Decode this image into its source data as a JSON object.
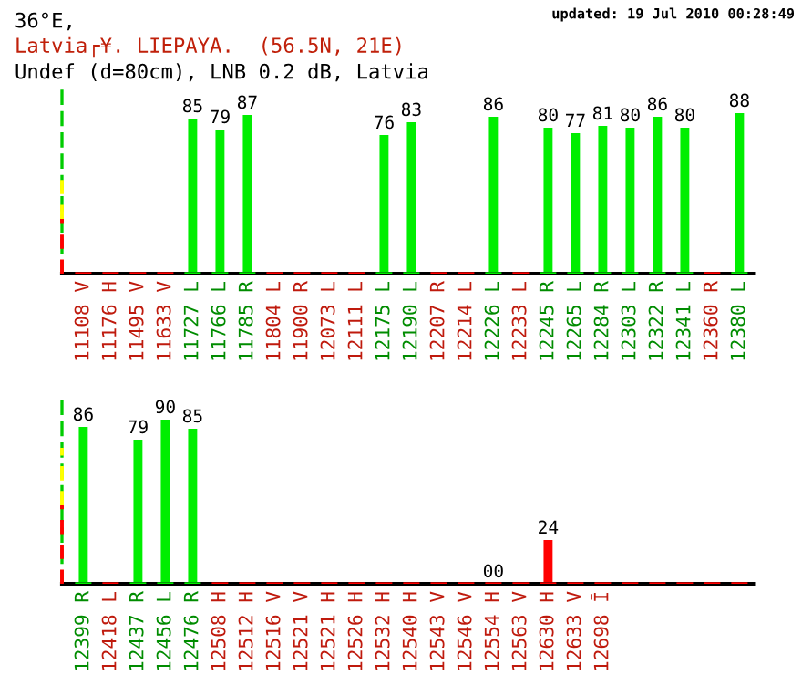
{
  "chart_data": [
    {
      "type": "bar",
      "title": "36°E,",
      "subtitle": "Latvia┌¥. LIEPAYA.  (56.5N, 21E)",
      "annotations": [
        "Undef (d=80cm), LNB 0.2 dB, Latvia",
        "updated: 19 Jul 2010 00:28:49"
      ],
      "categories": [
        "11108 V",
        "11176 H",
        "11495 V",
        "11633 V",
        "11727 L",
        "11766 L",
        "11785 R",
        "11804 L",
        "11900 R",
        "12073 L",
        "12111 L",
        "12175 L",
        "12190 L",
        "12207 R",
        "12214 L",
        "12226 L",
        "12233 L",
        "12245 R",
        "12265 L",
        "12284 R",
        "12303 L",
        "12322 R",
        "12341 L",
        "12360 R",
        "12380 L"
      ],
      "values": [
        0,
        0,
        0,
        0,
        85,
        79,
        87,
        0,
        0,
        0,
        0,
        76,
        83,
        0,
        0,
        86,
        0,
        80,
        77,
        81,
        80,
        86,
        80,
        0,
        88
      ],
      "colors": [
        "#ff0000",
        "#ff0000",
        "#ff0000",
        "#ff0000",
        "#00ee00",
        "#00ee00",
        "#00ee00",
        "#ff0000",
        "#ff0000",
        "#ff0000",
        "#ff0000",
        "#00ee00",
        "#00ee00",
        "#ff0000",
        "#ff0000",
        "#00ee00",
        "#ff0000",
        "#00ee00",
        "#00ee00",
        "#00ee00",
        "#00ee00",
        "#00ee00",
        "#00ee00",
        "#ff0000",
        "#00ee00"
      ],
      "value_labels": [
        null,
        null,
        null,
        null,
        "85",
        "79",
        "87",
        null,
        null,
        null,
        null,
        "76",
        "83",
        null,
        null,
        "86",
        null,
        "80",
        "77",
        "81",
        "80",
        "86",
        "80",
        null,
        "88"
      ],
      "ylim": [
        0,
        100
      ],
      "tick_labels": "x"
    },
    {
      "type": "bar",
      "categories": [
        "12399 R",
        "12418 L",
        "12437 R",
        "12456 L",
        "12476 R",
        "12508 H",
        "12512 H",
        "12516 V",
        "12521 V",
        "12521 H",
        "12526 H",
        "12532 H",
        "12540 H",
        "12543 V",
        "12546 V",
        "12554 H",
        "12563 V",
        "12630 H",
        "12633 V",
        "12698 Ī",
        null,
        null,
        null,
        null,
        null
      ],
      "values": [
        86,
        0,
        79,
        90,
        85,
        0,
        0,
        0,
        0,
        0,
        0,
        0,
        0,
        0,
        0,
        0,
        0,
        24,
        0,
        0,
        0,
        0,
        0,
        0,
        0
      ],
      "colors": [
        "#00ee00",
        "#ff0000",
        "#00ee00",
        "#00ee00",
        "#00ee00",
        "#ff0000",
        "#ff0000",
        "#ff0000",
        "#ff0000",
        "#ff0000",
        "#ff0000",
        "#ff0000",
        "#ff0000",
        "#ff0000",
        "#ff0000",
        "#ff0000",
        "#ff0000",
        "#ff0000",
        "#ff0000",
        "#ff0000",
        "#ff0000",
        "#ff0000",
        "#ff0000",
        "#ff0000",
        "#ff0000"
      ],
      "value_labels": [
        "86",
        null,
        "79",
        "90",
        "85",
        null,
        null,
        null,
        null,
        null,
        null,
        null,
        null,
        null,
        null,
        "00",
        null,
        "24",
        null,
        null,
        null,
        null,
        null,
        null,
        null
      ],
      "ylim": [
        0,
        105
      ],
      "tick_labels": "x"
    }
  ]
}
